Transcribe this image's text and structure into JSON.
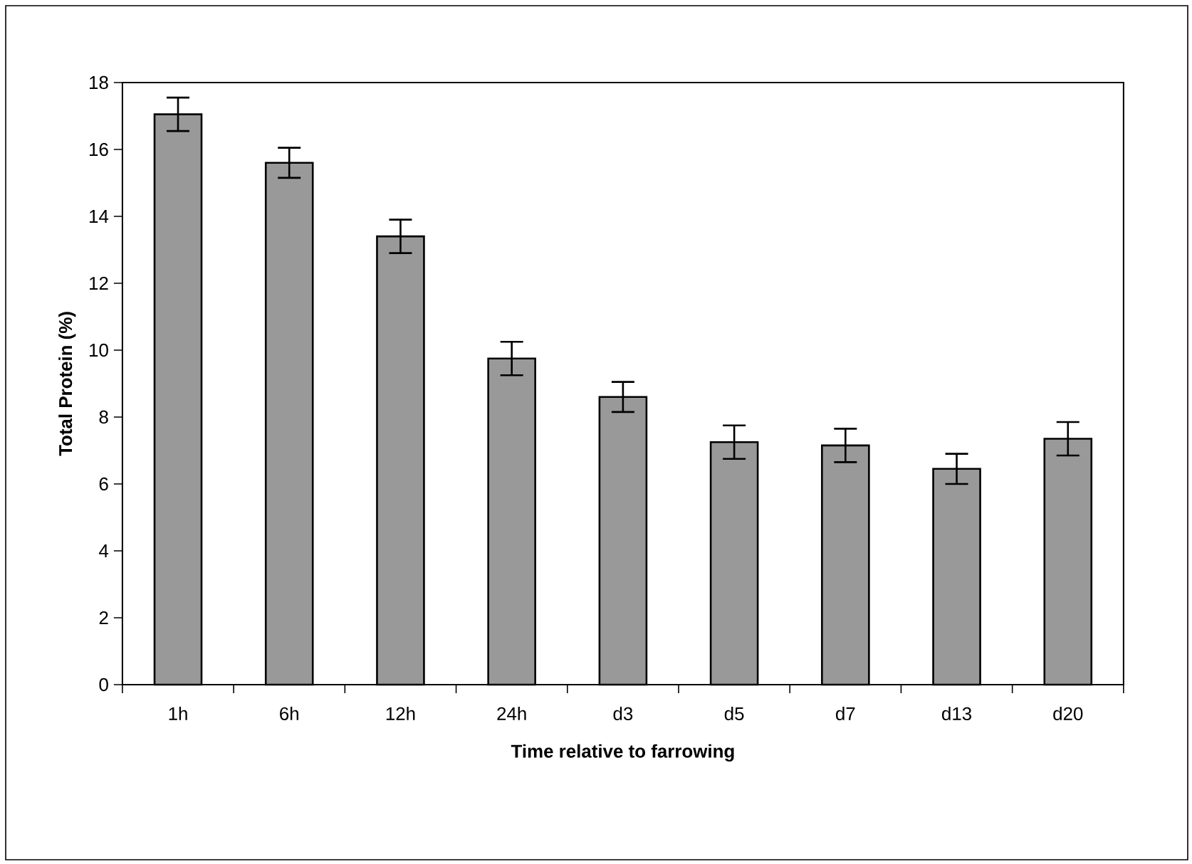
{
  "chart_data": {
    "type": "bar",
    "xlabel": "Time relative to farrowing",
    "ylabel": "Total Protein (%)",
    "categories": [
      "1h",
      "6h",
      "12h",
      "24h",
      "d3",
      "d5",
      "d7",
      "d13",
      "d20"
    ],
    "values": [
      17.05,
      15.6,
      13.4,
      9.75,
      8.6,
      7.25,
      7.15,
      6.45,
      7.35
    ],
    "errors": [
      0.5,
      0.45,
      0.5,
      0.5,
      0.45,
      0.5,
      0.5,
      0.45,
      0.5
    ],
    "color": "#999999",
    "ylim": [
      0,
      18
    ],
    "yticks": [
      0,
      2,
      4,
      6,
      8,
      10,
      12,
      14,
      16,
      18
    ]
  }
}
